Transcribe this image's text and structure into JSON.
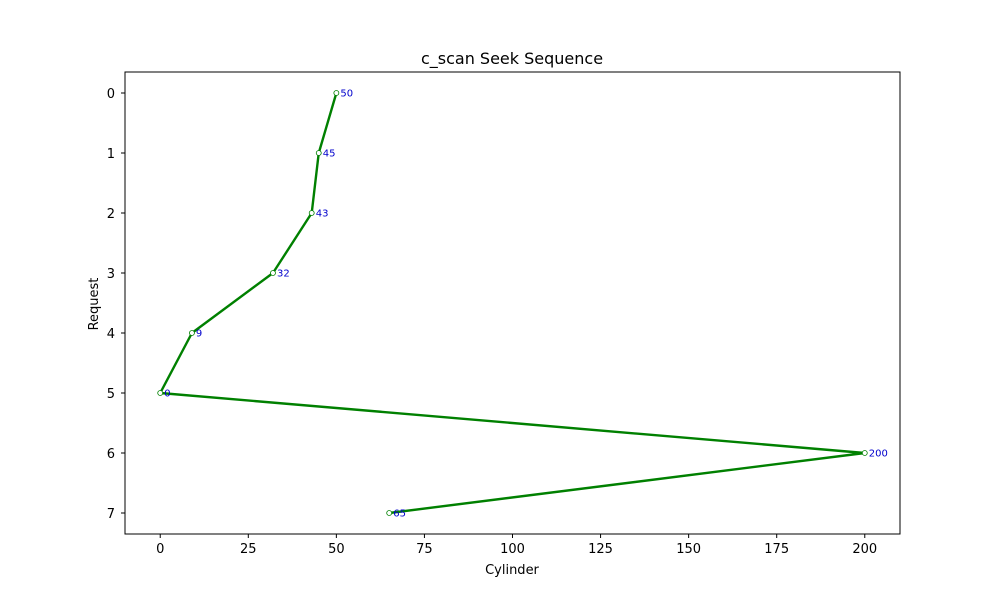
{
  "chart_data": {
    "type": "line",
    "title": "c_scan Seek Sequence",
    "xlabel": "Cylinder",
    "ylabel": "Request",
    "xlim": [
      -10,
      210
    ],
    "ylim": [
      7.35,
      -0.35
    ],
    "xticks": [
      0,
      25,
      50,
      75,
      100,
      125,
      150,
      175,
      200
    ],
    "yticks": [
      0,
      1,
      2,
      3,
      4,
      5,
      6,
      7
    ],
    "series": [
      {
        "x": [
          50,
          45,
          43,
          32,
          9,
          0,
          200,
          65
        ],
        "y": [
          0,
          1,
          2,
          3,
          4,
          5,
          6,
          7
        ],
        "labels": [
          "50",
          "45",
          "43",
          "32",
          "9",
          "0",
          "200",
          "65"
        ],
        "color": "#008000"
      }
    ],
    "data_label_color": "#0000cc",
    "grid": false,
    "legend": "none"
  }
}
